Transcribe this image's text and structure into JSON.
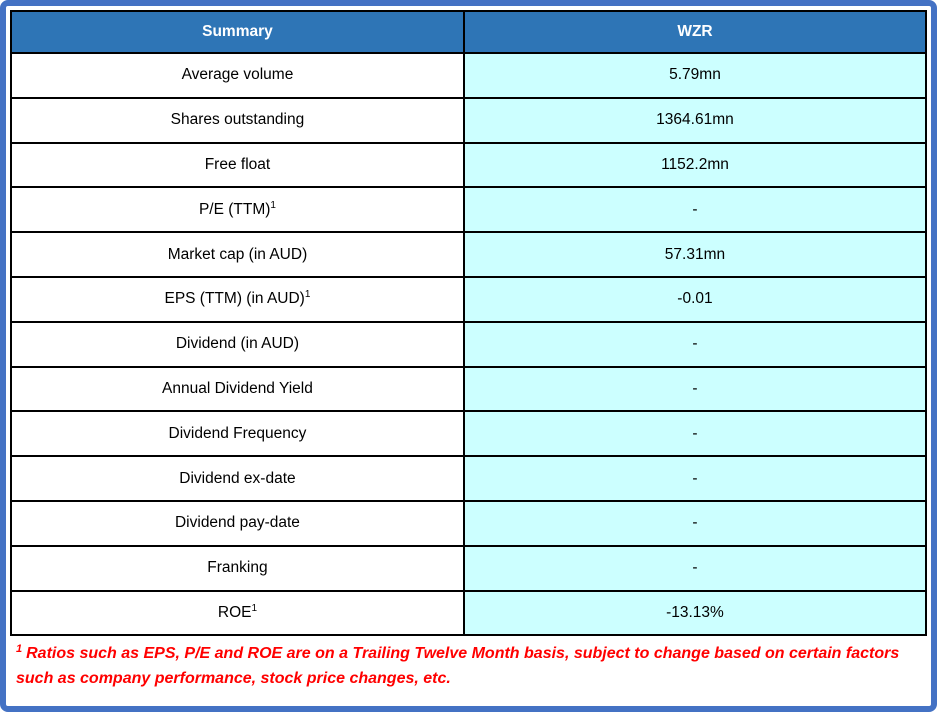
{
  "table": {
    "header": {
      "left": "Summary",
      "right": "WZR"
    },
    "rows": [
      {
        "label": "Average volume",
        "value": "5.79mn"
      },
      {
        "label": "Shares outstanding",
        "value": "1364.61mn"
      },
      {
        "label": "Free float",
        "value": "1152.2mn"
      },
      {
        "label": "P/E (TTM)",
        "sup": "1",
        "value": "-"
      },
      {
        "label": "Market cap (in AUD)",
        "value": "57.31mn"
      },
      {
        "label": "EPS (TTM) (in AUD)",
        "sup": "1",
        "value": "-0.01"
      },
      {
        "label": "Dividend (in AUD)",
        "value": "-"
      },
      {
        "label": "Annual Dividend Yield",
        "value": "-"
      },
      {
        "label": "Dividend Frequency",
        "value": "-"
      },
      {
        "label": "Dividend ex-date",
        "value": "-"
      },
      {
        "label": "Dividend pay-date",
        "value": "-"
      },
      {
        "label": "Franking",
        "value": "-"
      },
      {
        "label": "ROE",
        "sup": "1",
        "value": "-13.13%"
      }
    ]
  },
  "footnote": {
    "sup": "1",
    "text": "Ratios such as EPS, P/E and ROE are on a Trailing Twelve Month basis, subject to change based on certain factors such as company performance, stock price changes, etc."
  },
  "colors": {
    "frame_border": "#4472C4",
    "header_bg": "#2E75B6",
    "header_text": "#FFFFFF",
    "value_bg": "#CCFFFF",
    "grid_line": "#000000",
    "footnote_text": "#FF0000"
  }
}
